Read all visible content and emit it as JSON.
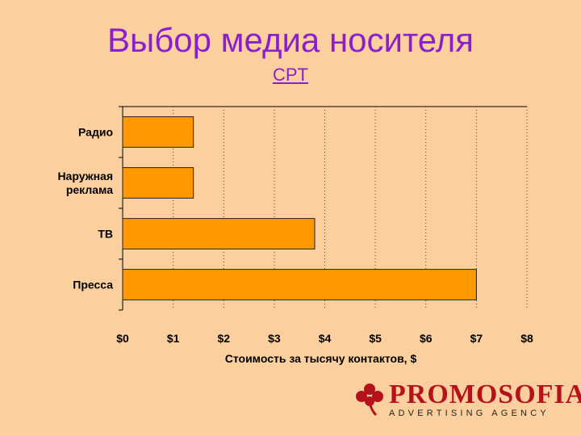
{
  "slide": {
    "title": "Выбор медиа носителя",
    "subtitle": "CPT"
  },
  "logo": {
    "name": "PROMOSOFIA",
    "tagline": "ADVERTISING AGENCY"
  },
  "chart_data": {
    "type": "bar",
    "orientation": "horizontal",
    "categories": [
      "Радио",
      "Наружная реклама",
      "ТВ",
      "Пресса"
    ],
    "values": [
      1.4,
      1.4,
      3.8,
      7.0
    ],
    "xlabel": "Стоимость за тысячу контактов, $",
    "ylabel": "",
    "xlim": [
      0,
      8
    ],
    "x_ticks": [
      "$0",
      "$1",
      "$2",
      "$3",
      "$4",
      "$5",
      "$6",
      "$7",
      "$8"
    ],
    "grid": "vertical dotted",
    "bar_color": "#ff9900"
  }
}
